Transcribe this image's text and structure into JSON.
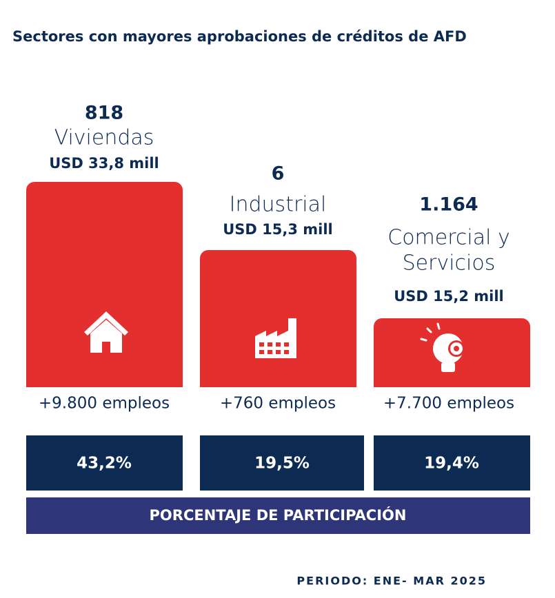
{
  "title": "Sectores con mayores aprobaciones de créditos de AFD",
  "sectors": [
    {
      "count": "818",
      "name": [
        "Viviendas"
      ],
      "amount": "USD 33,8 mill",
      "employment": "+9.800 empleos",
      "share": "43,2%"
    },
    {
      "count": "6",
      "name": [
        "Industrial"
      ],
      "amount": "USD 15,3 mill",
      "employment": "+760 empleos",
      "share": "19,5%"
    },
    {
      "count": "1.164",
      "name": [
        "Comercial y",
        "Servicios"
      ],
      "amount": "USD 15,2 mill",
      "employment": "+7.700 empleos",
      "share": "19,4%"
    }
  ],
  "share_label": "PORCENTAJE DE PARTICIPACIÓN",
  "period": "PERIODO: ENE- MAR 2025"
}
